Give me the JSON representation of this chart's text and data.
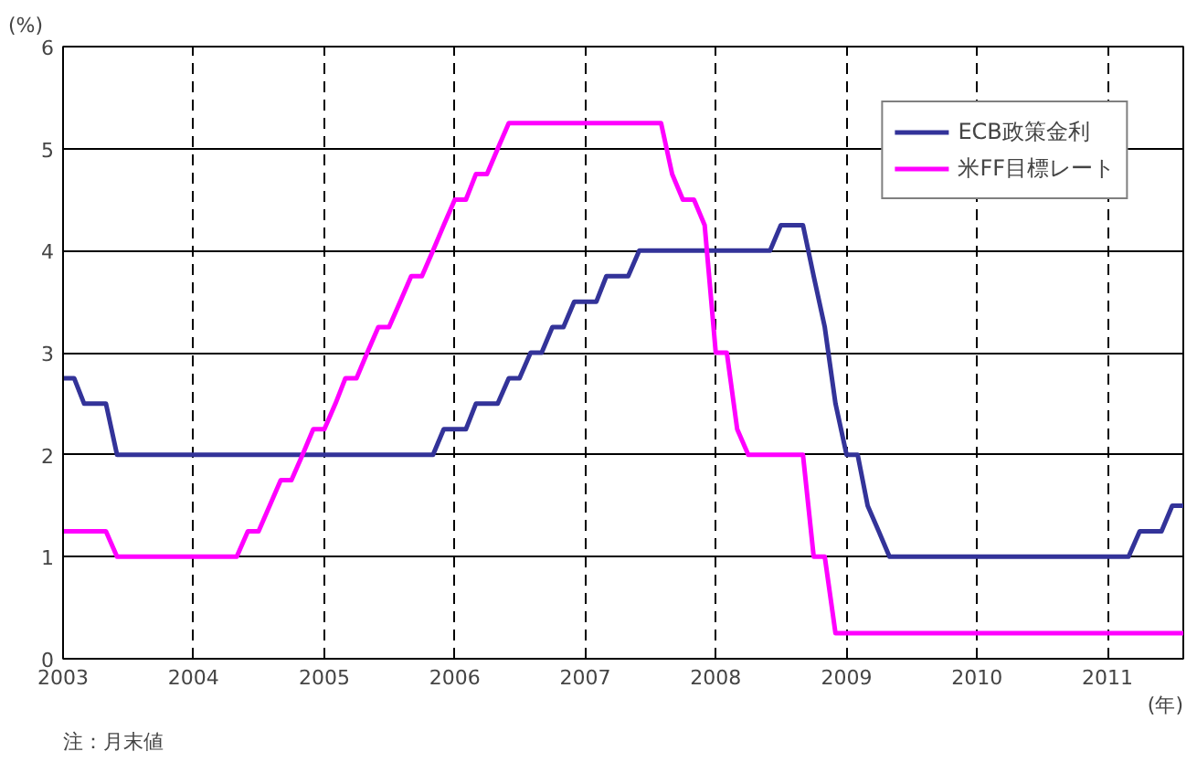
{
  "chart_data": {
    "type": "line",
    "ylabel": "(%)",
    "xlabel": "(年)",
    "annotations": [
      "注：月末値"
    ],
    "x": [
      "2003-01",
      "2003-02",
      "2003-03",
      "2003-04",
      "2003-05",
      "2003-06",
      "2003-07",
      "2003-08",
      "2003-09",
      "2003-10",
      "2003-11",
      "2003-12",
      "2004-01",
      "2004-02",
      "2004-03",
      "2004-04",
      "2004-05",
      "2004-06",
      "2004-07",
      "2004-08",
      "2004-09",
      "2004-10",
      "2004-11",
      "2004-12",
      "2005-01",
      "2005-02",
      "2005-03",
      "2005-04",
      "2005-05",
      "2005-06",
      "2005-07",
      "2005-08",
      "2005-09",
      "2005-10",
      "2005-11",
      "2005-12",
      "2006-01",
      "2006-02",
      "2006-03",
      "2006-04",
      "2006-05",
      "2006-06",
      "2006-07",
      "2006-08",
      "2006-09",
      "2006-10",
      "2006-11",
      "2006-12",
      "2007-01",
      "2007-02",
      "2007-03",
      "2007-04",
      "2007-05",
      "2007-06",
      "2007-07",
      "2007-08",
      "2007-09",
      "2007-10",
      "2007-11",
      "2007-12",
      "2008-01",
      "2008-02",
      "2008-03",
      "2008-04",
      "2008-05",
      "2008-06",
      "2008-07",
      "2008-08",
      "2008-09",
      "2008-10",
      "2008-11",
      "2008-12",
      "2009-01",
      "2009-02",
      "2009-03",
      "2009-04",
      "2009-05",
      "2009-06",
      "2009-07",
      "2009-08",
      "2009-09",
      "2009-10",
      "2009-11",
      "2009-12",
      "2010-01",
      "2010-02",
      "2010-03",
      "2010-04",
      "2010-05",
      "2010-06",
      "2010-07",
      "2010-08",
      "2010-09",
      "2010-10",
      "2010-11",
      "2010-12",
      "2011-01",
      "2011-02",
      "2011-03",
      "2011-04",
      "2011-05",
      "2011-06",
      "2011-07",
      "2011-08"
    ],
    "series": [
      {
        "name": "ECB政策金利",
        "color": "#333399",
        "values": [
          2.75,
          2.75,
          2.5,
          2.5,
          2.5,
          2,
          2,
          2,
          2,
          2,
          2,
          2,
          2,
          2,
          2,
          2,
          2,
          2,
          2,
          2,
          2,
          2,
          2,
          2,
          2,
          2,
          2,
          2,
          2,
          2,
          2,
          2,
          2,
          2,
          2,
          2.25,
          2.25,
          2.25,
          2.5,
          2.5,
          2.5,
          2.75,
          2.75,
          3,
          3,
          3.25,
          3.25,
          3.5,
          3.5,
          3.5,
          3.75,
          3.75,
          3.75,
          4,
          4,
          4,
          4,
          4,
          4,
          4,
          4,
          4,
          4,
          4,
          4,
          4,
          4.25,
          4.25,
          4.25,
          3.75,
          3.25,
          2.5,
          2,
          2,
          1.5,
          1.25,
          1,
          1,
          1,
          1,
          1,
          1,
          1,
          1,
          1,
          1,
          1,
          1,
          1,
          1,
          1,
          1,
          1,
          1,
          1,
          1,
          1,
          1,
          1,
          1.25,
          1.25,
          1.25,
          1.5,
          1.5
        ]
      },
      {
        "name": "米FF目標レート",
        "color": "#ff00ff",
        "values": [
          1.25,
          1.25,
          1.25,
          1.25,
          1.25,
          1,
          1,
          1,
          1,
          1,
          1,
          1,
          1,
          1,
          1,
          1,
          1,
          1.25,
          1.25,
          1.5,
          1.75,
          1.75,
          2,
          2.25,
          2.25,
          2.5,
          2.75,
          2.75,
          3,
          3.25,
          3.25,
          3.5,
          3.75,
          3.75,
          4,
          4.25,
          4.5,
          4.5,
          4.75,
          4.75,
          5,
          5.25,
          5.25,
          5.25,
          5.25,
          5.25,
          5.25,
          5.25,
          5.25,
          5.25,
          5.25,
          5.25,
          5.25,
          5.25,
          5.25,
          5.25,
          4.75,
          4.5,
          4.5,
          4.25,
          3,
          3,
          2.25,
          2,
          2,
          2,
          2,
          2,
          2,
          1,
          1,
          0.25,
          0.25,
          0.25,
          0.25,
          0.25,
          0.25,
          0.25,
          0.25,
          0.25,
          0.25,
          0.25,
          0.25,
          0.25,
          0.25,
          0.25,
          0.25,
          0.25,
          0.25,
          0.25,
          0.25,
          0.25,
          0.25,
          0.25,
          0.25,
          0.25,
          0.25,
          0.25,
          0.25,
          0.25,
          0.25,
          0.25,
          0.25,
          0.25
        ]
      }
    ],
    "xlim": [
      "2003-01",
      "2011-08"
    ],
    "xticks": [
      "2003",
      "2004",
      "2005",
      "2006",
      "2007",
      "2008",
      "2009",
      "2010",
      "2011"
    ],
    "ylim": [
      0,
      6
    ],
    "yticks": [
      0,
      1,
      2,
      3,
      4,
      5,
      6
    ],
    "grid": true,
    "legend": "top right",
    "marker": "none",
    "line_style": "solid"
  }
}
